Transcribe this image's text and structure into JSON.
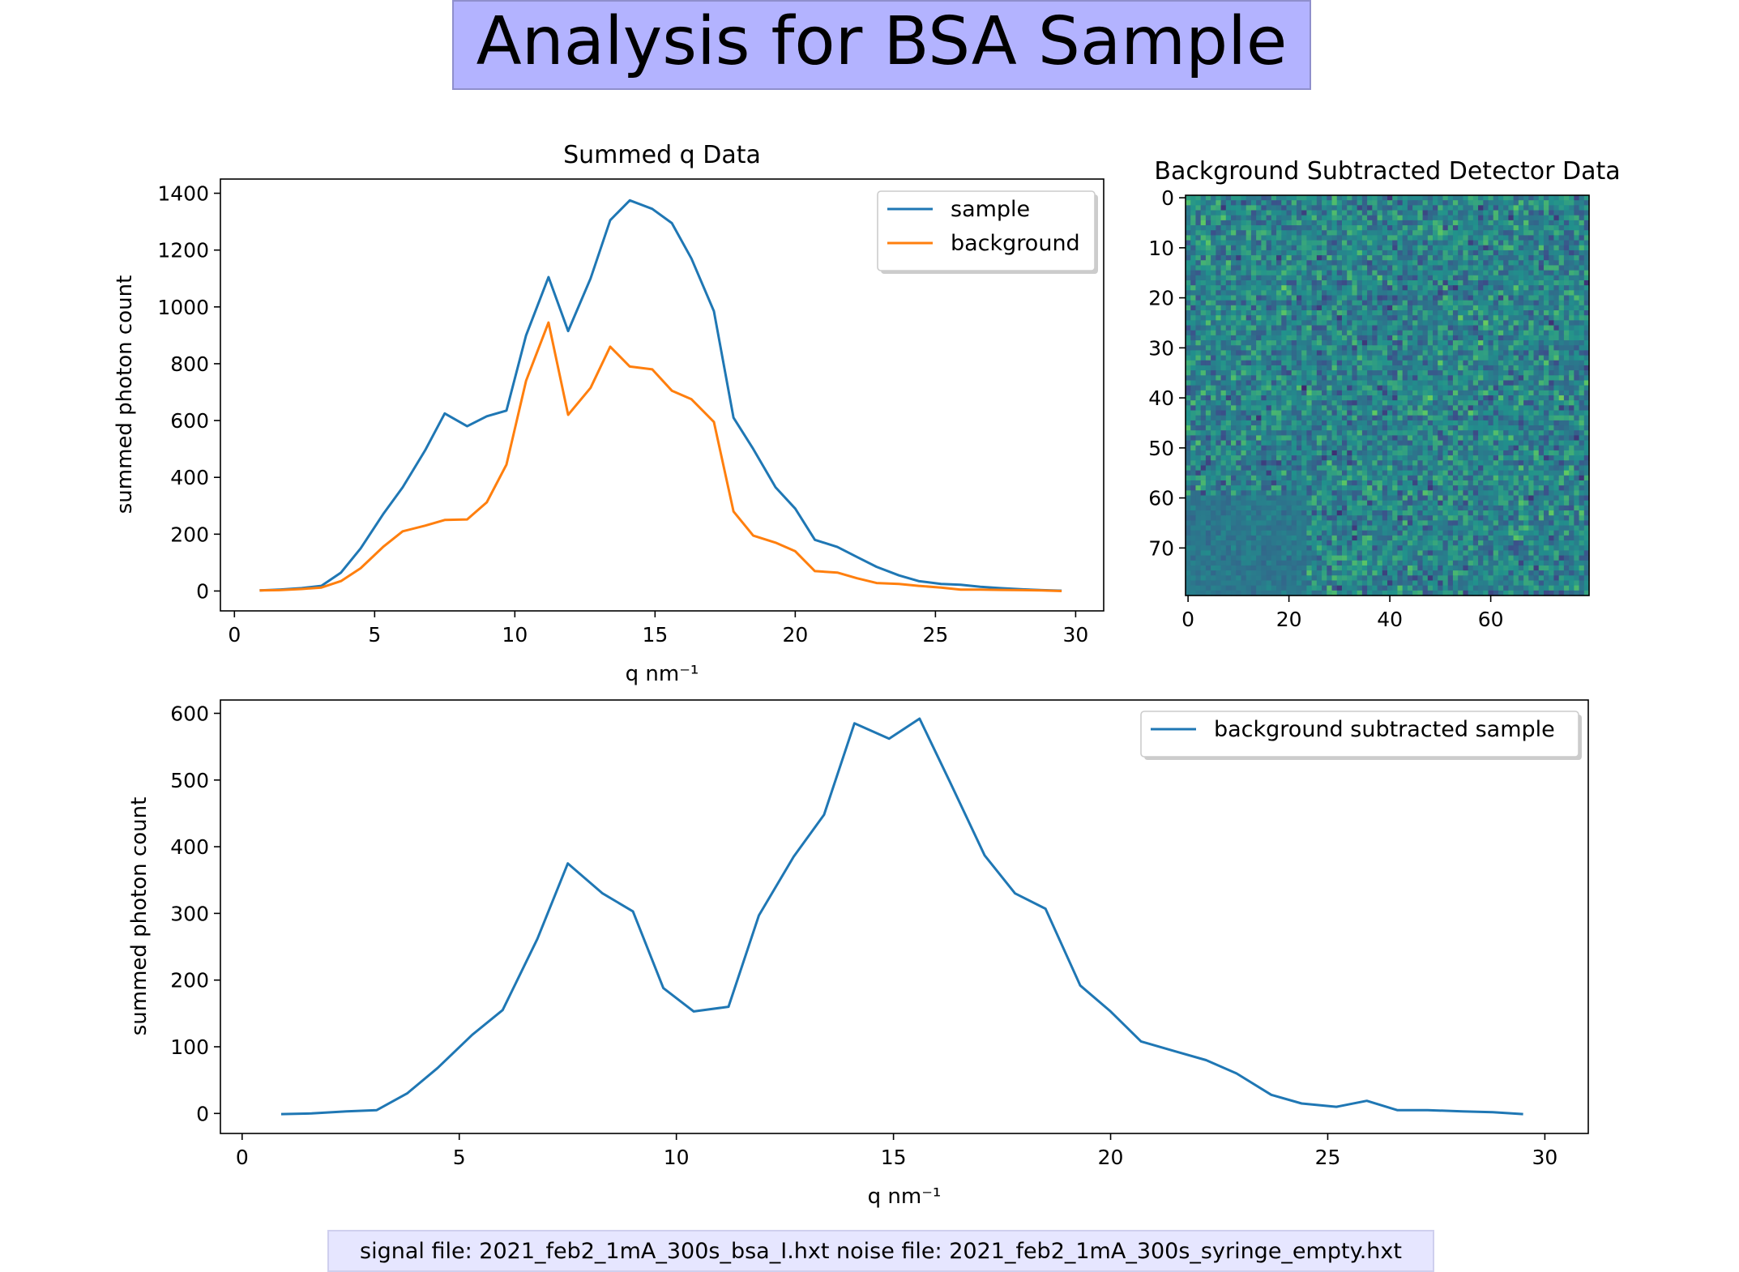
{
  "title": "Analysis for BSA Sample",
  "footer": "signal file: 2021_feb2_1mA_300s_bsa_I.hxt noise file: 2021_feb2_1mA_300s_syringe_empty.hxt",
  "chart_data": [
    {
      "type": "line",
      "title": "Summed q Data",
      "xlabel": "q nm⁻¹",
      "ylabel": "summed photon count",
      "xlim": [
        -0.5,
        31
      ],
      "ylim": [
        -70,
        1450
      ],
      "xticks": [
        0,
        5,
        10,
        15,
        20,
        25,
        30
      ],
      "yticks": [
        0,
        200,
        400,
        600,
        800,
        1000,
        1200,
        1400
      ],
      "grid": false,
      "legend": "top-right",
      "x": [
        0.9,
        1.6,
        2.4,
        3.1,
        3.8,
        4.5,
        5.3,
        6.0,
        6.8,
        7.5,
        8.3,
        9.0,
        9.7,
        10.4,
        11.2,
        11.9,
        12.7,
        13.4,
        14.1,
        14.9,
        15.6,
        16.3,
        17.1,
        17.8,
        18.5,
        19.3,
        20.0,
        20.7,
        21.5,
        22.2,
        22.9,
        23.7,
        24.4,
        25.2,
        25.9,
        26.6,
        27.3,
        28.1,
        28.8,
        29.5
      ],
      "series": [
        {
          "name": "sample",
          "color": "#1f77b4",
          "values": [
            2,
            5,
            10,
            18,
            65,
            150,
            270,
            365,
            495,
            625,
            580,
            615,
            635,
            900,
            1105,
            915,
            1100,
            1305,
            1375,
            1345,
            1295,
            1170,
            985,
            610,
            500,
            365,
            290,
            180,
            155,
            120,
            85,
            55,
            35,
            25,
            22,
            15,
            10,
            6,
            3,
            1
          ]
        },
        {
          "name": "background",
          "color": "#ff7f0e",
          "values": [
            2,
            3,
            7,
            12,
            35,
            80,
            155,
            210,
            230,
            250,
            252,
            312,
            445,
            740,
            945,
            620,
            715,
            860,
            790,
            780,
            705,
            675,
            595,
            280,
            195,
            170,
            140,
            70,
            65,
            45,
            28,
            25,
            18,
            12,
            5,
            5,
            4,
            3,
            2,
            0
          ]
        }
      ]
    },
    {
      "type": "heatmap",
      "title": "Background Subtracted Detector Data",
      "rows": 80,
      "cols": 80,
      "xticks": [
        0,
        20,
        40,
        60
      ],
      "yticks": [
        0,
        10,
        20,
        30,
        40,
        50,
        60,
        70
      ],
      "colormap": "viridis"
    },
    {
      "type": "line",
      "title": "",
      "xlabel": "q nm⁻¹",
      "ylabel": "summed photon count",
      "xlim": [
        -0.5,
        31
      ],
      "ylim": [
        -30,
        620
      ],
      "xticks": [
        0,
        5,
        10,
        15,
        20,
        25,
        30
      ],
      "yticks": [
        0,
        100,
        200,
        300,
        400,
        500,
        600
      ],
      "grid": false,
      "legend": "top-right",
      "x": [
        0.9,
        1.6,
        2.4,
        3.1,
        3.8,
        4.5,
        5.3,
        6.0,
        6.8,
        7.5,
        8.3,
        9.0,
        9.7,
        10.4,
        11.2,
        11.9,
        12.7,
        13.4,
        14.1,
        14.9,
        15.6,
        16.3,
        17.1,
        17.8,
        18.5,
        19.3,
        20.0,
        20.7,
        21.5,
        22.2,
        22.9,
        23.7,
        24.4,
        25.2,
        25.9,
        26.6,
        27.3,
        28.1,
        28.8,
        29.5
      ],
      "series": [
        {
          "name": "background subtracted sample",
          "color": "#1f77b4",
          "values": [
            -1,
            0,
            3,
            5,
            30,
            68,
            118,
            155,
            262,
            375,
            330,
            303,
            188,
            153,
            160,
            297,
            385,
            448,
            585,
            562,
            592,
            497,
            387,
            330,
            307,
            192,
            153,
            108,
            93,
            80,
            60,
            28,
            15,
            10,
            19,
            5,
            5,
            3,
            2,
            -1
          ]
        }
      ]
    }
  ]
}
